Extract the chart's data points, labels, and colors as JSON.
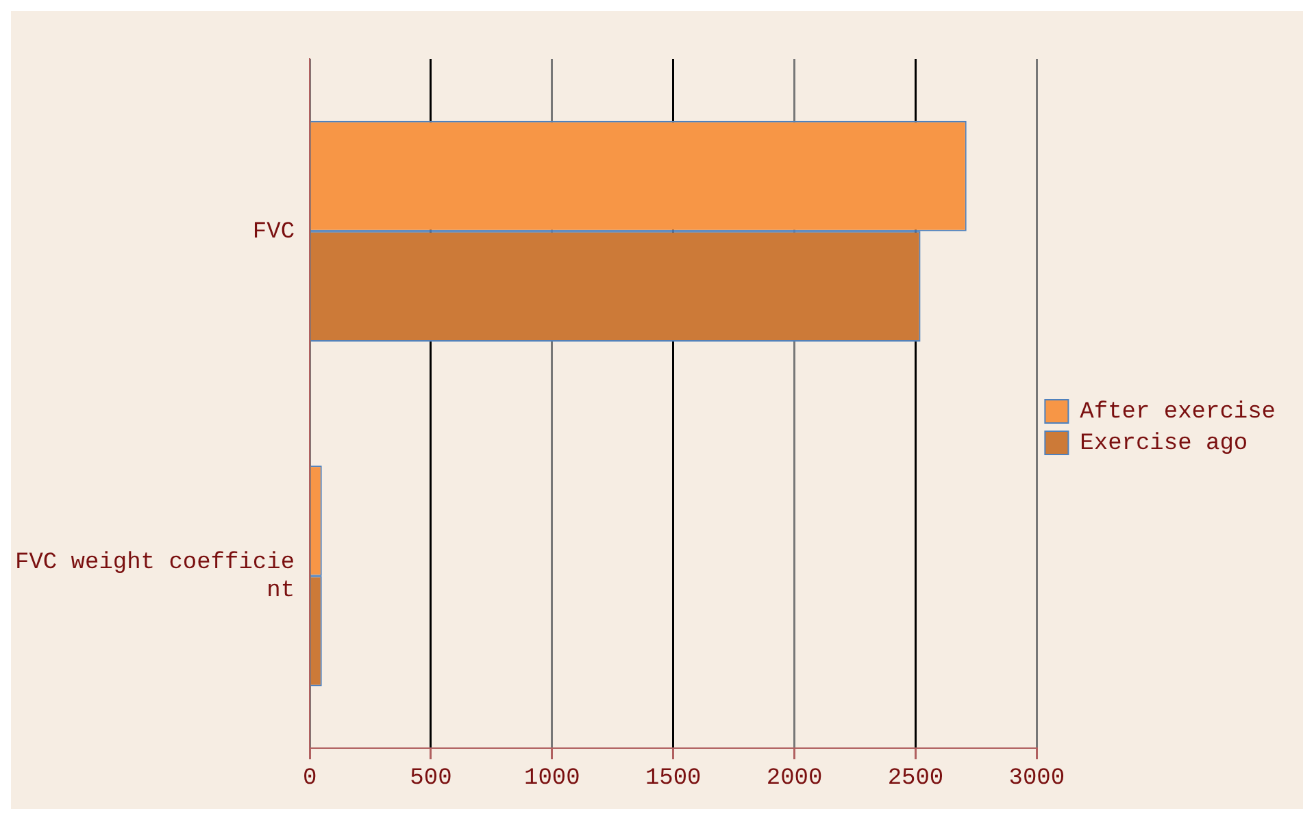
{
  "chart_data": {
    "type": "bar",
    "orientation": "horizontal",
    "categories": [
      "FVC",
      "FVC weight coefficient"
    ],
    "series": [
      {
        "name": "After exercise",
        "color": "#f79646",
        "values": [
          2710,
          50
        ]
      },
      {
        "name": "Exercise ago",
        "color": "#cc7a38",
        "values": [
          2520,
          50
        ]
      }
    ],
    "xlim": [
      0,
      3000
    ],
    "xticks": [
      0,
      500,
      1000,
      1500,
      2000,
      2500,
      3000
    ],
    "grid": "x",
    "legend": "right"
  }
}
